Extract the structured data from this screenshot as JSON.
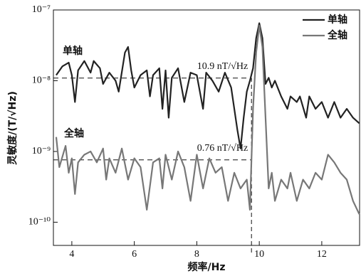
{
  "chart_data": {
    "type": "line",
    "xlabel": "频率/Hz",
    "ylabel": "灵敏度/(T/√Hz)",
    "log_y": true,
    "xlim": [
      3.41,
      13.21
    ],
    "ylim": [
      4.7e-11,
      1e-07
    ],
    "xticks": [
      4,
      6,
      8,
      10,
      12
    ],
    "yticks": [
      {
        "value": 1e-10,
        "label": "10⁻¹⁰"
      },
      {
        "value": 1e-09,
        "label": "10⁻⁹"
      },
      {
        "value": 1e-08,
        "label": "10⁻⁸"
      },
      {
        "value": 1e-07,
        "label": "10⁻⁷"
      }
    ],
    "legend": "upper right",
    "reference_lines": [
      {
        "value": 1.09e-08,
        "label": "10.9 nT/√Hz"
      },
      {
        "value": 7.6e-10,
        "label": "0.76 nT/√Hz"
      }
    ],
    "vline_x": 9.75,
    "series": [
      {
        "name": "单轴",
        "color": "#222222",
        "x": [
          3.5,
          3.7,
          3.9,
          4.0,
          4.1,
          4.2,
          4.4,
          4.6,
          4.7,
          4.9,
          5.0,
          5.2,
          5.4,
          5.5,
          5.7,
          5.8,
          5.9,
          6.0,
          6.2,
          6.4,
          6.5,
          6.6,
          6.8,
          6.9,
          7.0,
          7.1,
          7.2,
          7.4,
          7.6,
          7.8,
          8.0,
          8.2,
          8.3,
          8.5,
          8.7,
          8.9,
          9.1,
          9.3,
          9.4,
          9.5,
          9.6,
          9.7,
          9.8,
          9.9,
          10.0,
          10.1,
          10.2,
          10.3,
          10.4,
          10.5,
          10.7,
          10.9,
          11.0,
          11.2,
          11.3,
          11.5,
          11.6,
          11.8,
          12.0,
          12.2,
          12.4,
          12.6,
          12.8,
          13.0,
          13.2
        ],
        "values": [
          1.2e-08,
          1.6e-08,
          1.8e-08,
          1.2e-08,
          5e-09,
          1.4e-08,
          1.9e-08,
          1.3e-08,
          1.9e-08,
          1.5e-08,
          9e-09,
          1.3e-08,
          1e-08,
          7e-09,
          2.5e-08,
          3e-08,
          1.4e-08,
          8e-09,
          1.2e-08,
          1.4e-08,
          6e-09,
          1.2e-08,
          1.5e-08,
          4e-09,
          1.4e-08,
          3e-09,
          1.1e-08,
          1.5e-08,
          5e-09,
          1.3e-08,
          1.2e-08,
          4e-09,
          1.3e-08,
          1e-08,
          7e-09,
          1.3e-08,
          8e-09,
          2e-09,
          1.1e-09,
          3e-09,
          7e-09,
          1e-08,
          1.5e-08,
          4e-08,
          6.5e-08,
          4e-08,
          9e-09,
          1.1e-08,
          8e-09,
          1e-08,
          6e-09,
          4e-09,
          6e-09,
          5e-09,
          6e-09,
          3e-09,
          6e-09,
          4e-09,
          5e-09,
          3e-09,
          5e-09,
          3e-09,
          4e-09,
          3e-09,
          2.5e-09
        ]
      },
      {
        "name": "全轴",
        "color": "#777777",
        "x": [
          3.5,
          3.6,
          3.8,
          3.9,
          4.0,
          4.1,
          4.2,
          4.4,
          4.6,
          4.8,
          5.0,
          5.1,
          5.2,
          5.4,
          5.6,
          5.8,
          6.0,
          6.2,
          6.4,
          6.6,
          6.8,
          6.9,
          7.0,
          7.2,
          7.4,
          7.6,
          7.8,
          8.0,
          8.2,
          8.4,
          8.6,
          8.8,
          9.0,
          9.2,
          9.4,
          9.6,
          9.7,
          9.8,
          9.9,
          10.0,
          10.1,
          10.2,
          10.3,
          10.4,
          10.5,
          10.7,
          10.9,
          11.0,
          11.2,
          11.4,
          11.6,
          11.8,
          12.0,
          12.2,
          12.4,
          12.6,
          12.8,
          13.0,
          13.2
        ],
        "values": [
          1.6e-09,
          6e-10,
          1.2e-09,
          5e-10,
          8e-10,
          2.5e-10,
          7e-10,
          9e-10,
          1e-09,
          7e-10,
          1.1e-09,
          4e-10,
          8e-10,
          5e-10,
          1.1e-09,
          4e-10,
          8e-10,
          6e-10,
          1.5e-10,
          7e-10,
          8e-10,
          3e-10,
          9e-10,
          4e-10,
          1e-09,
          6e-10,
          2e-10,
          9e-10,
          3e-10,
          8e-10,
          5e-10,
          6e-10,
          2e-10,
          5e-10,
          3e-10,
          4e-10,
          1.5e-10,
          4e-09,
          2.5e-08,
          6e-08,
          3e-08,
          3e-09,
          3e-10,
          5e-10,
          2e-10,
          4e-10,
          3e-10,
          5e-10,
          2e-10,
          4e-10,
          3e-10,
          5e-10,
          4e-10,
          9e-10,
          7e-10,
          5e-10,
          4e-10,
          2e-10,
          1.3e-10
        ]
      }
    ]
  }
}
